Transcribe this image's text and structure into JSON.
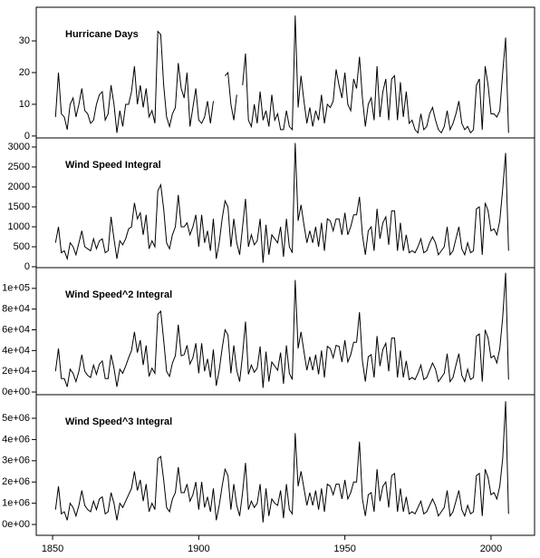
{
  "chart_data": [
    {
      "type": "line",
      "title": "Hurricane Days",
      "color": "#000000",
      "x": [
        1851,
        1852,
        1853,
        1854,
        1855,
        1856,
        1857,
        1858,
        1859,
        1860,
        1861,
        1862,
        1863,
        1864,
        1865,
        1866,
        1867,
        1868,
        1869,
        1870,
        1871,
        1872,
        1873,
        1874,
        1875,
        1876,
        1877,
        1878,
        1879,
        1880,
        1881,
        1882,
        1883,
        1884,
        1885,
        1886,
        1887,
        1888,
        1889,
        1890,
        1891,
        1892,
        1893,
        1894,
        1895,
        1896,
        1897,
        1898,
        1899,
        1900,
        1901,
        1902,
        1903,
        1904,
        1905,
        1906,
        1907,
        1908,
        1909,
        1910,
        1911,
        1912,
        1913,
        1914,
        1915,
        1916,
        1917,
        1918,
        1919,
        1920,
        1921,
        1922,
        1923,
        1924,
        1925,
        1926,
        1927,
        1928,
        1929,
        1930,
        1931,
        1932,
        1933,
        1934,
        1935,
        1936,
        1937,
        1938,
        1939,
        1940,
        1941,
        1942,
        1943,
        1944,
        1945,
        1946,
        1947,
        1948,
        1949,
        1950,
        1951,
        1952,
        1953,
        1954,
        1955,
        1956,
        1957,
        1958,
        1959,
        1960,
        1961,
        1962,
        1963,
        1964,
        1965,
        1966,
        1967,
        1968,
        1969,
        1970,
        1971,
        1972,
        1973,
        1974,
        1975,
        1976,
        1977,
        1978,
        1979,
        1980,
        1981,
        1982,
        1983,
        1984,
        1985,
        1986,
        1987,
        1988,
        1989,
        1990,
        1991,
        1992,
        1993,
        1994,
        1995,
        1996,
        1997,
        1998,
        1999,
        2000,
        2001,
        2002,
        2003,
        2004,
        2005,
        2006
      ],
      "values": [
        6,
        20,
        7,
        6,
        2,
        10,
        12,
        6,
        10,
        15,
        8,
        7,
        4,
        5,
        10,
        13,
        14,
        5,
        7,
        16,
        10,
        1,
        8,
        3,
        10,
        10,
        14,
        22,
        10,
        16,
        9,
        15,
        6,
        8,
        4,
        33,
        32,
        16,
        6,
        3,
        7,
        9,
        23,
        15,
        12,
        20,
        3,
        9,
        15,
        5,
        4,
        6,
        11,
        4,
        11,
        null,
        null,
        null,
        19,
        20,
        10,
        5,
        13,
        null,
        16,
        26,
        5,
        3,
        10,
        4,
        14,
        5,
        8,
        3,
        13,
        5,
        7,
        2,
        2,
        8,
        3,
        2,
        38,
        9,
        19,
        11,
        4,
        9,
        3,
        8,
        5,
        13,
        4,
        10,
        9,
        11,
        21,
        16,
        12,
        20,
        10,
        8,
        18,
        15,
        25,
        12,
        3,
        10,
        12,
        5,
        22,
        6,
        14,
        18,
        5,
        18,
        19,
        5,
        17,
        6,
        14,
        4,
        5,
        2,
        1,
        7,
        2,
        3,
        7,
        9,
        5,
        2,
        1,
        3,
        8,
        2,
        4,
        7,
        11,
        4,
        2,
        3,
        1,
        2,
        16,
        18,
        2,
        22,
        16,
        7,
        7,
        6,
        8,
        20,
        31,
        1
      ],
      "xlim": [
        1844.4,
        2014.9
      ],
      "ylim": [
        -0.6,
        40.6
      ],
      "yticks": [
        0,
        10,
        20,
        30
      ]
    },
    {
      "type": "line",
      "title": "Wind Speed Integral",
      "color": "#000000",
      "x": [
        1851,
        1852,
        1853,
        1854,
        1855,
        1856,
        1857,
        1858,
        1859,
        1860,
        1861,
        1862,
        1863,
        1864,
        1865,
        1866,
        1867,
        1868,
        1869,
        1870,
        1871,
        1872,
        1873,
        1874,
        1875,
        1876,
        1877,
        1878,
        1879,
        1880,
        1881,
        1882,
        1883,
        1884,
        1885,
        1886,
        1887,
        1888,
        1889,
        1890,
        1891,
        1892,
        1893,
        1894,
        1895,
        1896,
        1897,
        1898,
        1899,
        1900,
        1901,
        1902,
        1903,
        1904,
        1905,
        1906,
        1907,
        1908,
        1909,
        1910,
        1911,
        1912,
        1913,
        1914,
        1915,
        1916,
        1917,
        1918,
        1919,
        1920,
        1921,
        1922,
        1923,
        1924,
        1925,
        1926,
        1927,
        1928,
        1929,
        1930,
        1931,
        1932,
        1933,
        1934,
        1935,
        1936,
        1937,
        1938,
        1939,
        1940,
        1941,
        1942,
        1943,
        1944,
        1945,
        1946,
        1947,
        1948,
        1949,
        1950,
        1951,
        1952,
        1953,
        1954,
        1955,
        1956,
        1957,
        1958,
        1959,
        1960,
        1961,
        1962,
        1963,
        1964,
        1965,
        1966,
        1967,
        1968,
        1969,
        1970,
        1971,
        1972,
        1973,
        1974,
        1975,
        1976,
        1977,
        1978,
        1979,
        1980,
        1981,
        1982,
        1983,
        1984,
        1985,
        1986,
        1987,
        1988,
        1989,
        1990,
        1991,
        1992,
        1993,
        1994,
        1995,
        1996,
        1997,
        1998,
        1999,
        2000,
        2001,
        2002,
        2003,
        2004,
        2005,
        2006
      ],
      "values": [
        600,
        1000,
        350,
        400,
        200,
        600,
        500,
        300,
        600,
        900,
        500,
        450,
        400,
        700,
        450,
        650,
        700,
        350,
        400,
        1250,
        700,
        200,
        650,
        550,
        700,
        950,
        1000,
        1600,
        1200,
        1350,
        800,
        1300,
        450,
        650,
        500,
        1900,
        2050,
        1450,
        600,
        450,
        800,
        1000,
        1800,
        1000,
        1000,
        1100,
        800,
        1000,
        1300,
        500,
        1300,
        600,
        900,
        400,
        1200,
        200,
        600,
        1200,
        1650,
        1500,
        500,
        1200,
        600,
        300,
        1000,
        1700,
        500,
        800,
        550,
        650,
        1200,
        100,
        1050,
        300,
        800,
        700,
        600,
        1000,
        250,
        1200,
        500,
        350,
        3100,
        1150,
        1550,
        1050,
        600,
        900,
        600,
        1000,
        500,
        1100,
        400,
        1200,
        1150,
        900,
        1200,
        1200,
        800,
        1350,
        800,
        1000,
        1300,
        1300,
        1750,
        800,
        300,
        900,
        1000,
        400,
        1450,
        700,
        1100,
        1250,
        550,
        1400,
        1400,
        400,
        1100,
        400,
        800,
        350,
        400,
        350,
        500,
        700,
        350,
        400,
        600,
        750,
        600,
        300,
        400,
        500,
        1000,
        300,
        400,
        700,
        1000,
        450,
        300,
        600,
        350,
        400,
        1450,
        1500,
        300,
        1600,
        1400,
        900,
        950,
        800,
        1150,
        1950,
        2850,
        400
      ],
      "xlim": [
        1844.4,
        2014.9
      ],
      "ylim": [
        -23,
        3227
      ],
      "yticks": [
        0,
        500,
        1000,
        1500,
        2000,
        2500,
        3000
      ]
    },
    {
      "type": "line",
      "title": "Wind Speed^2 Integral",
      "color": "#000000",
      "x": [
        1851,
        1852,
        1853,
        1854,
        1855,
        1856,
        1857,
        1858,
        1859,
        1860,
        1861,
        1862,
        1863,
        1864,
        1865,
        1866,
        1867,
        1868,
        1869,
        1870,
        1871,
        1872,
        1873,
        1874,
        1875,
        1876,
        1877,
        1878,
        1879,
        1880,
        1881,
        1882,
        1883,
        1884,
        1885,
        1886,
        1887,
        1888,
        1889,
        1890,
        1891,
        1892,
        1893,
        1894,
        1895,
        1896,
        1897,
        1898,
        1899,
        1900,
        1901,
        1902,
        1903,
        1904,
        1905,
        1906,
        1907,
        1908,
        1909,
        1910,
        1911,
        1912,
        1913,
        1914,
        1915,
        1916,
        1917,
        1918,
        1919,
        1920,
        1921,
        1922,
        1923,
        1924,
        1925,
        1926,
        1927,
        1928,
        1929,
        1930,
        1931,
        1932,
        1933,
        1934,
        1935,
        1936,
        1937,
        1938,
        1939,
        1940,
        1941,
        1942,
        1943,
        1944,
        1945,
        1946,
        1947,
        1948,
        1949,
        1950,
        1951,
        1952,
        1953,
        1954,
        1955,
        1956,
        1957,
        1958,
        1959,
        1960,
        1961,
        1962,
        1963,
        1964,
        1965,
        1966,
        1967,
        1968,
        1969,
        1970,
        1971,
        1972,
        1973,
        1974,
        1975,
        1976,
        1977,
        1978,
        1979,
        1980,
        1981,
        1982,
        1983,
        1984,
        1985,
        1986,
        1987,
        1988,
        1989,
        1990,
        1991,
        1992,
        1993,
        1994,
        1995,
        1996,
        1997,
        1998,
        1999,
        2000,
        2001,
        2002,
        2003,
        2004,
        2005,
        2006
      ],
      "values": [
        20000,
        42000,
        13000,
        13000,
        5000,
        22000,
        18000,
        10000,
        20000,
        36000,
        20000,
        16000,
        14000,
        26000,
        17000,
        27000,
        30000,
        13000,
        13000,
        36000,
        23000,
        5000,
        22000,
        18000,
        25000,
        33000,
        40000,
        58000,
        38000,
        50000,
        26000,
        45000,
        15000,
        23000,
        18000,
        75000,
        78000,
        50000,
        20000,
        15000,
        28000,
        35000,
        65000,
        35000,
        36000,
        45000,
        27000,
        33000,
        47000,
        18000,
        47000,
        20000,
        32000,
        14000,
        41000,
        6000,
        21000,
        42000,
        60000,
        55000,
        18000,
        45000,
        21000,
        10000,
        36000,
        68000,
        17000,
        26000,
        19000,
        23000,
        44000,
        4000,
        39000,
        10000,
        29000,
        25000,
        21000,
        38000,
        8000,
        45000,
        18000,
        12000,
        108000,
        42000,
        58000,
        39000,
        21000,
        34000,
        21000,
        36000,
        17000,
        40000,
        14000,
        44000,
        42000,
        33000,
        45000,
        44000,
        29000,
        50000,
        29000,
        36000,
        48000,
        48000,
        77000,
        30000,
        10000,
        34000,
        36000,
        14000,
        54000,
        25000,
        41000,
        47000,
        20000,
        52000,
        52000,
        14000,
        40000,
        14000,
        30000,
        12000,
        14000,
        12000,
        18000,
        26000,
        12000,
        14000,
        21000,
        28000,
        22000,
        10000,
        14000,
        18000,
        37000,
        10000,
        14000,
        26000,
        37000,
        16000,
        10000,
        22000,
        12000,
        14000,
        54000,
        56000,
        10000,
        60000,
        52000,
        33000,
        35000,
        28000,
        42000,
        72000,
        115000,
        12000
      ],
      "xlim": [
        1844.4,
        2014.9
      ],
      "ylim": [
        -2600,
        120000
      ],
      "yticks": [
        {
          "value": 0,
          "label": "0e+00"
        },
        {
          "value": 20000,
          "label": "2e+04"
        },
        {
          "value": 40000,
          "label": "4e+04"
        },
        {
          "value": 60000,
          "label": "6e+04"
        },
        {
          "value": 80000,
          "label": "8e+04"
        },
        {
          "value": 100000,
          "label": "1e+05"
        }
      ]
    },
    {
      "type": "line",
      "title": "Wind Speed^3 Integral",
      "color": "#000000",
      "x": [
        1851,
        1852,
        1853,
        1854,
        1855,
        1856,
        1857,
        1858,
        1859,
        1860,
        1861,
        1862,
        1863,
        1864,
        1865,
        1866,
        1867,
        1868,
        1869,
        1870,
        1871,
        1872,
        1873,
        1874,
        1875,
        1876,
        1877,
        1878,
        1879,
        1880,
        1881,
        1882,
        1883,
        1884,
        1885,
        1886,
        1887,
        1888,
        1889,
        1890,
        1891,
        1892,
        1893,
        1894,
        1895,
        1896,
        1897,
        1898,
        1899,
        1900,
        1901,
        1902,
        1903,
        1904,
        1905,
        1906,
        1907,
        1908,
        1909,
        1910,
        1911,
        1912,
        1913,
        1914,
        1915,
        1916,
        1917,
        1918,
        1919,
        1920,
        1921,
        1922,
        1923,
        1924,
        1925,
        1926,
        1927,
        1928,
        1929,
        1930,
        1931,
        1932,
        1933,
        1934,
        1935,
        1936,
        1937,
        1938,
        1939,
        1940,
        1941,
        1942,
        1943,
        1944,
        1945,
        1946,
        1947,
        1948,
        1949,
        1950,
        1951,
        1952,
        1953,
        1954,
        1955,
        1956,
        1957,
        1958,
        1959,
        1960,
        1961,
        1962,
        1963,
        1964,
        1965,
        1966,
        1967,
        1968,
        1969,
        1970,
        1971,
        1972,
        1973,
        1974,
        1975,
        1976,
        1977,
        1978,
        1979,
        1980,
        1981,
        1982,
        1983,
        1984,
        1985,
        1986,
        1987,
        1988,
        1989,
        1990,
        1991,
        1992,
        1993,
        1994,
        1995,
        1996,
        1997,
        1998,
        1999,
        2000,
        2001,
        2002,
        2003,
        2004,
        2005,
        2006
      ],
      "values": [
        700000,
        1800000,
        500000,
        600000,
        200000,
        1000000,
        800000,
        400000,
        900000,
        1600000,
        900000,
        700000,
        600000,
        1100000,
        700000,
        1200000,
        1300000,
        500000,
        600000,
        1500000,
        1000000,
        200000,
        1000000,
        800000,
        1100000,
        1400000,
        1700000,
        2500000,
        1600000,
        2100000,
        1100000,
        1900000,
        600000,
        1000000,
        700000,
        3100000,
        3200000,
        2100000,
        800000,
        600000,
        1200000,
        1500000,
        2700000,
        1500000,
        1500000,
        1900000,
        1100000,
        1400000,
        2000000,
        700000,
        2000000,
        800000,
        1300000,
        600000,
        1700000,
        200000,
        900000,
        1800000,
        2600000,
        2300000,
        700000,
        1900000,
        900000,
        400000,
        1500000,
        2900000,
        700000,
        1100000,
        800000,
        1000000,
        1900000,
        100000,
        1700000,
        400000,
        1200000,
        1000000,
        900000,
        1600000,
        300000,
        1900000,
        700000,
        500000,
        4300000,
        1800000,
        2500000,
        1700000,
        900000,
        1500000,
        900000,
        1600000,
        700000,
        1700000,
        600000,
        1900000,
        1800000,
        1400000,
        1900000,
        1900000,
        1200000,
        2100000,
        1200000,
        1500000,
        2000000,
        2000000,
        3900000,
        1200000,
        400000,
        1400000,
        1500000,
        600000,
        2600000,
        1100000,
        1800000,
        2000000,
        800000,
        2300000,
        2400000,
        600000,
        1700000,
        600000,
        1300000,
        500000,
        600000,
        500000,
        800000,
        1100000,
        500000,
        600000,
        900000,
        1200000,
        900000,
        400000,
        600000,
        800000,
        1600000,
        400000,
        600000,
        1100000,
        1600000,
        700000,
        400000,
        900000,
        500000,
        600000,
        2300000,
        2400000,
        400000,
        2600000,
        2200000,
        1400000,
        1500000,
        1200000,
        1800000,
        3100000,
        5800000,
        500000
      ],
      "xlim": [
        1844.4,
        2014.9
      ],
      "ylim": [
        -510000,
        6110000
      ],
      "yticks": [
        {
          "value": 0,
          "label": "0e+00"
        },
        {
          "value": 1000000,
          "label": "1e+06"
        },
        {
          "value": 2000000,
          "label": "2e+06"
        },
        {
          "value": 3000000,
          "label": "3e+06"
        },
        {
          "value": 4000000,
          "label": "4e+06"
        },
        {
          "value": 5000000,
          "label": "5e+06"
        }
      ],
      "xticks": [
        1850,
        1900,
        1950,
        2000
      ]
    }
  ]
}
